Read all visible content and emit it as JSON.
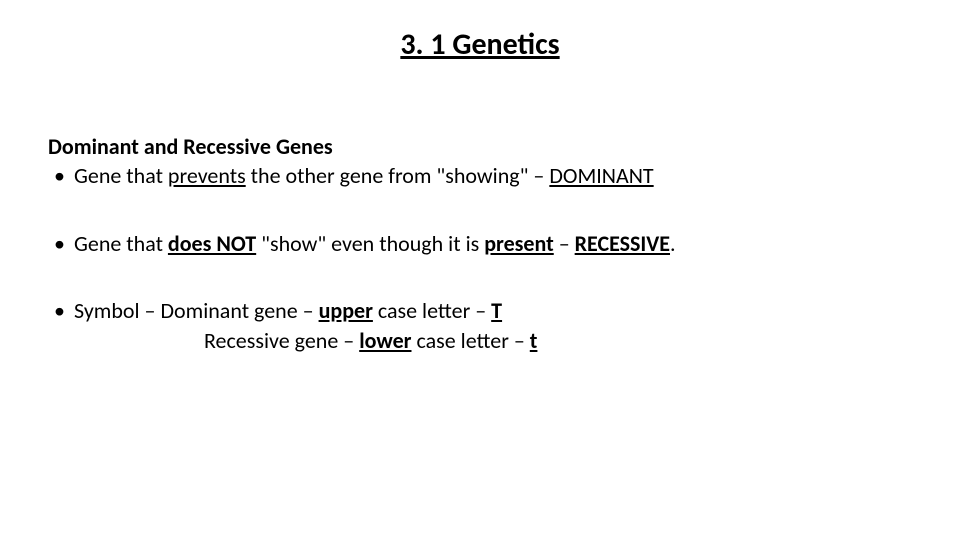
{
  "slide": {
    "background_color": "#ffffff",
    "text_color": "#000000",
    "title": {
      "text": "3. 1 Genetics",
      "fontsize": 30,
      "fontweight": 700,
      "underline": true,
      "align": "center"
    },
    "subheading": {
      "text": "Dominant and Recessive Genes",
      "fontsize": 22,
      "fontweight": 700
    },
    "body_fontsize": 22,
    "bullets": [
      {
        "segments": [
          {
            "text": "Gene that ",
            "bold": false,
            "underline": false
          },
          {
            "text": " prevents",
            "bold": false,
            "underline": true
          },
          {
            "text": " the other gene from \"showing\" – ",
            "bold": false,
            "underline": false
          },
          {
            "text": "DOMINANT",
            "bold": false,
            "underline": true
          }
        ]
      },
      {
        "segments": [
          {
            "text": "Gene that ",
            "bold": false,
            "underline": false
          },
          {
            "text": "does NOT",
            "bold": true,
            "underline": true
          },
          {
            "text": " \"show\" even though it is ",
            "bold": false,
            "underline": false
          },
          {
            "text": "present",
            "bold": true,
            "underline": true
          },
          {
            "text": " – ",
            "bold": false,
            "underline": false
          },
          {
            "text": "RECESSIVE",
            "bold": true,
            "underline": true
          },
          {
            "text": ".",
            "bold": false,
            "underline": false
          }
        ]
      },
      {
        "segments": [
          {
            "text": "Symbol – Dominant gene – ",
            "bold": false,
            "underline": false
          },
          {
            "text": "upper",
            "bold": true,
            "underline": true
          },
          {
            "text": " case letter – ",
            "bold": false,
            "underline": false
          },
          {
            "text": "T",
            "bold": true,
            "underline": true
          }
        ],
        "continuation": {
          "segments": [
            {
              "text": "Recessive gene – ",
              "bold": false,
              "underline": false
            },
            {
              "text": "lower",
              "bold": true,
              "underline": true
            },
            {
              "text": " case letter – ",
              "bold": false,
              "underline": false
            },
            {
              "text": "t",
              "bold": true,
              "underline": true
            }
          ]
        }
      }
    ]
  }
}
